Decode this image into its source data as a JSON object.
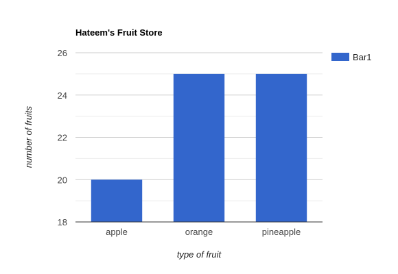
{
  "chart_data": {
    "type": "bar",
    "title": "Hateem's Fruit Store",
    "xlabel": "type of fruit",
    "ylabel": "number of fruits",
    "categories": [
      "apple",
      "orange",
      "pineapple"
    ],
    "series": [
      {
        "name": "Bar1",
        "values": [
          20,
          25,
          25
        ],
        "color": "#3366cc"
      }
    ],
    "ylim": [
      18,
      26
    ],
    "yticks": [
      "18",
      "20",
      "22",
      "24",
      "26"
    ],
    "grid": true,
    "legend_position": "right"
  }
}
